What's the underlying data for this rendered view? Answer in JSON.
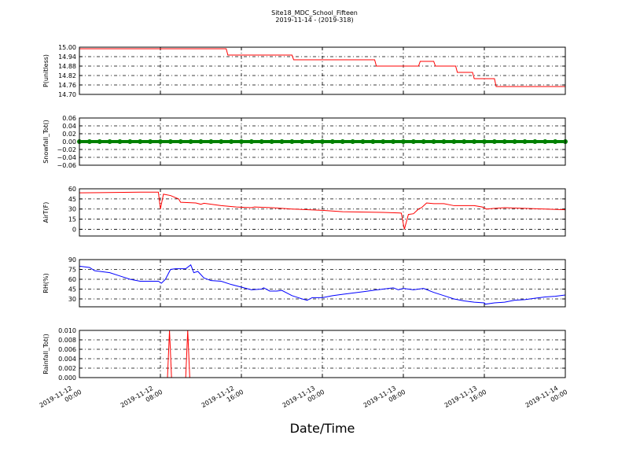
{
  "title": "Site18_MDC_School_Fifteen",
  "subtitle": "2019-11-14 - (2019-318)",
  "xlabel": "Date/Time",
  "chart_data": [
    {
      "type": "line",
      "ylabel": "P(unitless)",
      "color": "#ff0000",
      "x": [
        "2019-11-12 00:00",
        "2019-11-12 14:30",
        "2019-11-12 14:40",
        "2019-11-12 21:00",
        "2019-11-12 21:10",
        "2019-11-13 05:10",
        "2019-11-13 05:20",
        "2019-11-13 09:30",
        "2019-11-13 09:40",
        "2019-11-13 11:00",
        "2019-11-13 11:10",
        "2019-11-13 13:10",
        "2019-11-13 13:20",
        "2019-11-13 14:50",
        "2019-11-13 15:00",
        "2019-11-13 17:00",
        "2019-11-13 17:10",
        "2019-11-14 00:00"
      ],
      "values": [
        14.99,
        14.99,
        14.95,
        14.95,
        14.92,
        14.92,
        14.88,
        14.88,
        14.91,
        14.91,
        14.88,
        14.88,
        14.84,
        14.84,
        14.8,
        14.8,
        14.75,
        14.75
      ],
      "ylim": [
        14.7,
        15.0
      ],
      "yticks": [
        {
          "value": 14.7,
          "label": "14.70"
        },
        14.76,
        14.82,
        14.88,
        14.94,
        {
          "value": 15.0,
          "label": "15.00"
        }
      ]
    },
    {
      "type": "scatter",
      "ylabel": "Snowfall_Tot()",
      "color": "#008000",
      "x": [
        "2019-11-12 00:00",
        "2019-11-12 01:00",
        "2019-11-12 02:00",
        "2019-11-12 03:00",
        "2019-11-12 04:00",
        "2019-11-12 05:00",
        "2019-11-12 06:00",
        "2019-11-12 07:00",
        "2019-11-12 08:00",
        "2019-11-12 09:00",
        "2019-11-12 10:00",
        "2019-11-12 11:00",
        "2019-11-12 12:00",
        "2019-11-12 13:00",
        "2019-11-12 14:00",
        "2019-11-12 15:00",
        "2019-11-12 16:00",
        "2019-11-12 17:00",
        "2019-11-12 18:00",
        "2019-11-12 19:00",
        "2019-11-12 20:00",
        "2019-11-12 21:00",
        "2019-11-12 22:00",
        "2019-11-12 23:00",
        "2019-11-13 00:00",
        "2019-11-13 01:00",
        "2019-11-13 02:00",
        "2019-11-13 03:00",
        "2019-11-13 04:00",
        "2019-11-13 05:00",
        "2019-11-13 06:00",
        "2019-11-13 07:00",
        "2019-11-13 08:00",
        "2019-11-13 09:00",
        "2019-11-13 10:00",
        "2019-11-13 11:00",
        "2019-11-13 12:00",
        "2019-11-13 13:00",
        "2019-11-13 14:00",
        "2019-11-13 15:00",
        "2019-11-13 16:00",
        "2019-11-13 17:00",
        "2019-11-13 18:00",
        "2019-11-13 19:00",
        "2019-11-13 20:00",
        "2019-11-13 21:00",
        "2019-11-13 22:00",
        "2019-11-13 23:00",
        "2019-11-14 00:00"
      ],
      "values": [
        0,
        0,
        0,
        0,
        0,
        0,
        0,
        0,
        0,
        0,
        0,
        0,
        0,
        0,
        0,
        0,
        0,
        0,
        0,
        0,
        0,
        0,
        0,
        0,
        0,
        0,
        0,
        0,
        0,
        0,
        0,
        0,
        0,
        0,
        0,
        0,
        0,
        0,
        0,
        0,
        0,
        0,
        0,
        0,
        0,
        0,
        0,
        0,
        0
      ],
      "ylim": [
        -0.06,
        0.06
      ],
      "yticks": [
        {
          "value": -0.06,
          "label": "−0.06"
        },
        {
          "value": -0.04,
          "label": "−0.04"
        },
        {
          "value": -0.02,
          "label": "−0.02"
        },
        {
          "value": 0,
          "label": "0.00"
        },
        0.02,
        0.04,
        0.06
      ]
    },
    {
      "type": "line",
      "ylabel": "AirT(F)",
      "color": "#ff0000",
      "x": [
        "2019-11-12 00:00",
        "2019-11-12 06:00",
        "2019-11-12 07:48",
        "2019-11-12 08:00",
        "2019-11-12 08:18",
        "2019-11-12 09:00",
        "2019-11-12 09:48",
        "2019-11-12 10:00",
        "2019-11-12 11:30",
        "2019-11-12 12:00",
        "2019-11-12 12:18",
        "2019-11-12 14:00",
        "2019-11-12 15:30",
        "2019-11-12 17:00",
        "2019-11-12 17:18",
        "2019-11-12 19:00",
        "2019-11-12 21:00",
        "2019-11-13 00:00",
        "2019-11-13 02:00",
        "2019-11-13 06:00",
        "2019-11-13 07:48",
        "2019-11-13 08:06",
        "2019-11-13 08:30",
        "2019-11-13 09:00",
        "2019-11-13 09:30",
        "2019-11-13 09:48",
        "2019-11-13 10:18",
        "2019-11-13 11:00",
        "2019-11-13 12:00",
        "2019-11-13 13:00",
        "2019-11-13 15:00",
        "2019-11-13 15:48",
        "2019-11-13 16:12",
        "2019-11-13 17:00",
        "2019-11-13 18:00",
        "2019-11-13 22:00",
        "2019-11-14 00:00"
      ],
      "values": [
        54,
        55,
        55,
        30,
        52,
        50,
        45,
        40,
        39,
        37,
        38.5,
        35,
        33,
        32,
        33,
        32,
        30,
        28,
        26,
        25,
        24,
        0,
        22,
        23,
        30,
        32,
        39,
        38,
        38,
        35,
        35,
        33,
        30,
        31,
        32,
        30,
        29
      ],
      "ylim": [
        -10,
        60
      ],
      "yticks": [
        0,
        15,
        30,
        45,
        60
      ]
    },
    {
      "type": "line",
      "ylabel": "RH(%)",
      "color": "#0000ff",
      "x": [
        "2019-11-12 00:00",
        "2019-11-12 01:00",
        "2019-11-12 01:30",
        "2019-11-12 03:00",
        "2019-11-12 04:00",
        "2019-11-12 05:00",
        "2019-11-12 06:00",
        "2019-11-12 07:00",
        "2019-11-12 07:48",
        "2019-11-12 08:06",
        "2019-11-12 08:30",
        "2019-11-12 09:00",
        "2019-11-12 09:30",
        "2019-11-12 10:30",
        "2019-11-12 11:00",
        "2019-11-12 11:18",
        "2019-11-12 11:42",
        "2019-11-12 12:18",
        "2019-11-12 13:00",
        "2019-11-12 14:00",
        "2019-11-12 15:00",
        "2019-11-12 16:00",
        "2019-11-12 17:00",
        "2019-11-12 18:00",
        "2019-11-12 18:12",
        "2019-11-12 18:48",
        "2019-11-12 19:30",
        "2019-11-12 20:00",
        "2019-11-12 21:00",
        "2019-11-12 22:00",
        "2019-11-12 22:30",
        "2019-11-12 23:00",
        "2019-11-13 00:00",
        "2019-11-13 01:00",
        "2019-11-13 02:00",
        "2019-11-13 03:00",
        "2019-11-13 04:00",
        "2019-11-13 05:00",
        "2019-11-13 06:00",
        "2019-11-13 07:00",
        "2019-11-13 07:30",
        "2019-11-13 08:00",
        "2019-11-13 09:00",
        "2019-11-13 10:00",
        "2019-11-13 11:00",
        "2019-11-13 12:00",
        "2019-11-13 13:00",
        "2019-11-13 14:00",
        "2019-11-13 15:00",
        "2019-11-13 16:00",
        "2019-11-13 16:06",
        "2019-11-13 17:00",
        "2019-11-13 18:00",
        "2019-11-13 19:00",
        "2019-11-13 20:00",
        "2019-11-13 21:00",
        "2019-11-13 22:00",
        "2019-11-13 23:00",
        "2019-11-14 00:00"
      ],
      "values": [
        80,
        78,
        73,
        70,
        65,
        60,
        57,
        57,
        57,
        54,
        60,
        75,
        76,
        76,
        82,
        70,
        72,
        62,
        58,
        57,
        52,
        48,
        44,
        45,
        47,
        42,
        42,
        43,
        35,
        30,
        28,
        32,
        32,
        35,
        37,
        39,
        41,
        43,
        45,
        47,
        44,
        46,
        44,
        46,
        40,
        35,
        30,
        27,
        25,
        24,
        22,
        24,
        25,
        28,
        29,
        31,
        33,
        34,
        36
      ],
      "ylim": [
        18,
        90
      ],
      "yticks": [
        30,
        45,
        60,
        75,
        90
      ]
    },
    {
      "type": "line",
      "ylabel": "Rainfall_Tot()",
      "color": "#ff0000",
      "x": [
        "2019-11-12 00:00",
        "2019-11-12 08:42",
        "2019-11-12 08:54",
        "2019-11-12 09:06",
        "2019-11-12 10:30",
        "2019-11-12 10:42",
        "2019-11-12 10:54",
        "2019-11-14 00:00"
      ],
      "values": [
        0,
        0,
        0.01,
        0,
        0,
        0.01,
        0,
        0
      ],
      "ylim": [
        0,
        0.01
      ],
      "yticks": [
        {
          "value": 0,
          "label": "0.000"
        },
        {
          "value": 0.002,
          "label": "0.002"
        },
        {
          "value": 0.004,
          "label": "0.004"
        },
        {
          "value": 0.006,
          "label": "0.006"
        },
        {
          "value": 0.008,
          "label": "0.008"
        },
        {
          "value": 0.01,
          "label": "0.010"
        }
      ]
    }
  ],
  "xlim": [
    "2019-11-12 00:00",
    "2019-11-14 00:00"
  ],
  "xticks": [
    "2019-11-12 00:00",
    "2019-11-12 08:00",
    "2019-11-12 16:00",
    "2019-11-13 00:00",
    "2019-11-13 08:00",
    "2019-11-13 16:00",
    "2019-11-14 00:00"
  ]
}
